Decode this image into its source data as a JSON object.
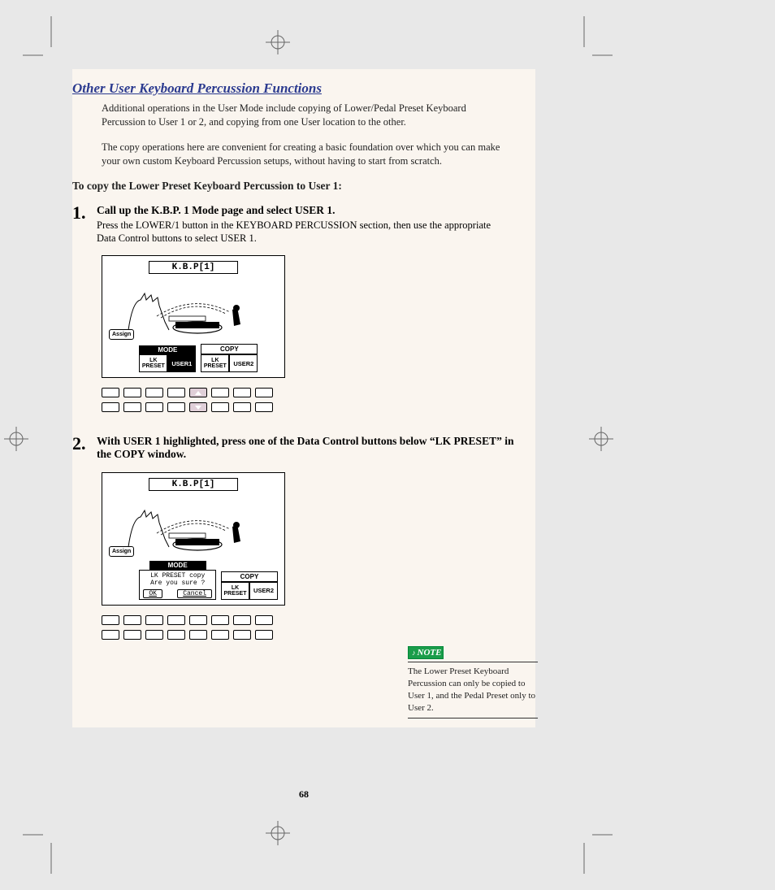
{
  "section_title": "Other User Keyboard Percussion Functions",
  "intro_p1": "Additional operations in the User Mode include copying of Lower/Pedal Preset Keyboard Percussion to User 1 or 2, and copying from one User location to the other.",
  "intro_p2": "The copy operations here are convenient for creating a basic foundation over which you can make your own custom Keyboard Percussion setups, without having to start from scratch.",
  "subsection": "To copy the Lower Preset Keyboard Percussion to User 1:",
  "step1": {
    "num": "1.",
    "title": "Call up the K.B.P. 1 Mode page and select USER 1.",
    "desc": "Press the LOWER/1 button in the KEYBOARD PERCUSSION section, then use the appropriate Data Control buttons to select USER 1."
  },
  "step2": {
    "num": "2.",
    "title": "With USER 1 highlighted, press one of the Data Control buttons below “LK PRESET” in the COPY window."
  },
  "lcd": {
    "title": "K.B.P[1]",
    "assign": "Assign",
    "mode_label": "MODE",
    "copy_label": "COPY",
    "lk_preset": "LK\nPRESET",
    "user1": "USER1",
    "user2": "USER2",
    "dialog_l1": "LK PRESET copy",
    "dialog_l2": "Are you sure ?",
    "ok": "OK",
    "cancel": "Cancel"
  },
  "note": {
    "label": "NOTE",
    "text": "The Lower Preset Keyboard Percussion can only be copied to User 1, and the Pedal Preset only to User 2."
  },
  "page_number": "68",
  "buttons1": {
    "highlight_up": 4,
    "highlight_down": 4
  },
  "buttons2": {
    "highlight_up": -1,
    "highlight_down": -1
  }
}
